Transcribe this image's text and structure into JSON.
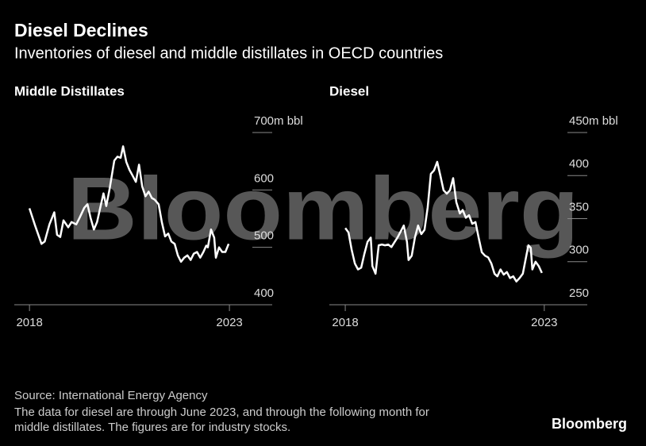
{
  "title": "Diesel Declines",
  "subtitle": "Inventories of diesel and middle distillates in OECD countries",
  "watermark": "Bloomberg",
  "chart_data": [
    {
      "type": "line",
      "title": "Middle Distillates",
      "color": "#ffffff",
      "x": [
        2018.0,
        2018.14,
        2018.3,
        2018.38,
        2018.5,
        2018.62,
        2018.69,
        2018.77,
        2018.85,
        2018.97,
        2019.05,
        2019.17,
        2019.25,
        2019.37,
        2019.45,
        2019.53,
        2019.61,
        2019.69,
        2019.77,
        2019.85,
        2019.92,
        2020.0,
        2020.12,
        2020.2,
        2020.28,
        2020.34,
        2020.42,
        2020.5,
        2020.58,
        2020.66,
        2020.74,
        2020.82,
        2020.9,
        2020.98,
        2021.06,
        2021.13,
        2021.23,
        2021.31,
        2021.39,
        2021.47,
        2021.55,
        2021.63,
        2021.71,
        2021.79,
        2021.87,
        2021.95,
        2022.03,
        2022.11,
        2022.19,
        2022.27,
        2022.35,
        2022.42,
        2022.46,
        2022.54,
        2022.62,
        2022.66,
        2022.74,
        2022.82,
        2022.9,
        2022.98
      ],
      "values": [
        568,
        538,
        506,
        510,
        540,
        561,
        522,
        518,
        547,
        535,
        544,
        540,
        551,
        569,
        575,
        551,
        531,
        544,
        569,
        594,
        572,
        600,
        651,
        658,
        656,
        676,
        649,
        635,
        625,
        614,
        644,
        606,
        589,
        597,
        586,
        583,
        575,
        544,
        519,
        524,
        510,
        506,
        486,
        475,
        482,
        486,
        478,
        489,
        492,
        482,
        492,
        503,
        500,
        531,
        517,
        482,
        500,
        492,
        492,
        506
      ],
      "xlim": [
        2017.62,
        2024.07
      ],
      "xticks": [
        2018,
        2023
      ],
      "ylim": [
        400,
        700
      ],
      "yticks": [
        400,
        500,
        600,
        {
          "value": 700,
          "label": "700m bbl"
        }
      ]
    },
    {
      "type": "line",
      "title": "Diesel",
      "color": "#ffffff",
      "x": [
        2018.0,
        2018.08,
        2018.16,
        2018.24,
        2018.32,
        2018.4,
        2018.48,
        2018.56,
        2018.64,
        2018.68,
        2018.76,
        2018.84,
        2018.92,
        2019.0,
        2019.08,
        2019.16,
        2019.24,
        2019.31,
        2019.39,
        2019.47,
        2019.55,
        2019.59,
        2019.67,
        2019.75,
        2019.83,
        2019.91,
        2019.99,
        2020.07,
        2020.15,
        2020.23,
        2020.31,
        2020.39,
        2020.47,
        2020.55,
        2020.63,
        2020.71,
        2020.79,
        2020.88,
        2020.95,
        2021.03,
        2021.11,
        2021.19,
        2021.27,
        2021.35,
        2021.43,
        2021.51,
        2021.59,
        2021.67,
        2021.75,
        2021.82,
        2021.9,
        2021.98,
        2022.06,
        2022.14,
        2022.22,
        2022.3,
        2022.38,
        2022.46,
        2022.54,
        2022.6,
        2022.66,
        2022.7,
        2022.78,
        2022.86,
        2022.94
      ],
      "values": [
        339,
        334,
        314,
        298,
        291,
        293,
        309,
        323,
        328,
        295,
        286,
        319,
        320,
        319,
        320,
        317,
        323,
        328,
        335,
        342,
        323,
        302,
        307,
        328,
        342,
        332,
        337,
        363,
        402,
        406,
        416,
        400,
        383,
        379,
        383,
        397,
        369,
        356,
        360,
        351,
        354,
        344,
        346,
        328,
        311,
        307,
        305,
        298,
        286,
        283,
        291,
        285,
        288,
        281,
        283,
        277,
        281,
        286,
        305,
        319,
        316,
        291,
        300,
        295,
        287
      ],
      "xlim": [
        2017.6,
        2024.08
      ],
      "xticks": [
        2018,
        2023
      ],
      "ylim": [
        250,
        450
      ],
      "yticks": [
        250,
        300,
        350,
        400,
        {
          "value": 450,
          "label": "450m bbl"
        }
      ]
    }
  ],
  "source": "Source: International Energy Agency",
  "note": [
    "The data for diesel are through June 2023, and through the following month for",
    "middle distillates. The figures are for industry stocks."
  ],
  "logo": "Bloomberg"
}
